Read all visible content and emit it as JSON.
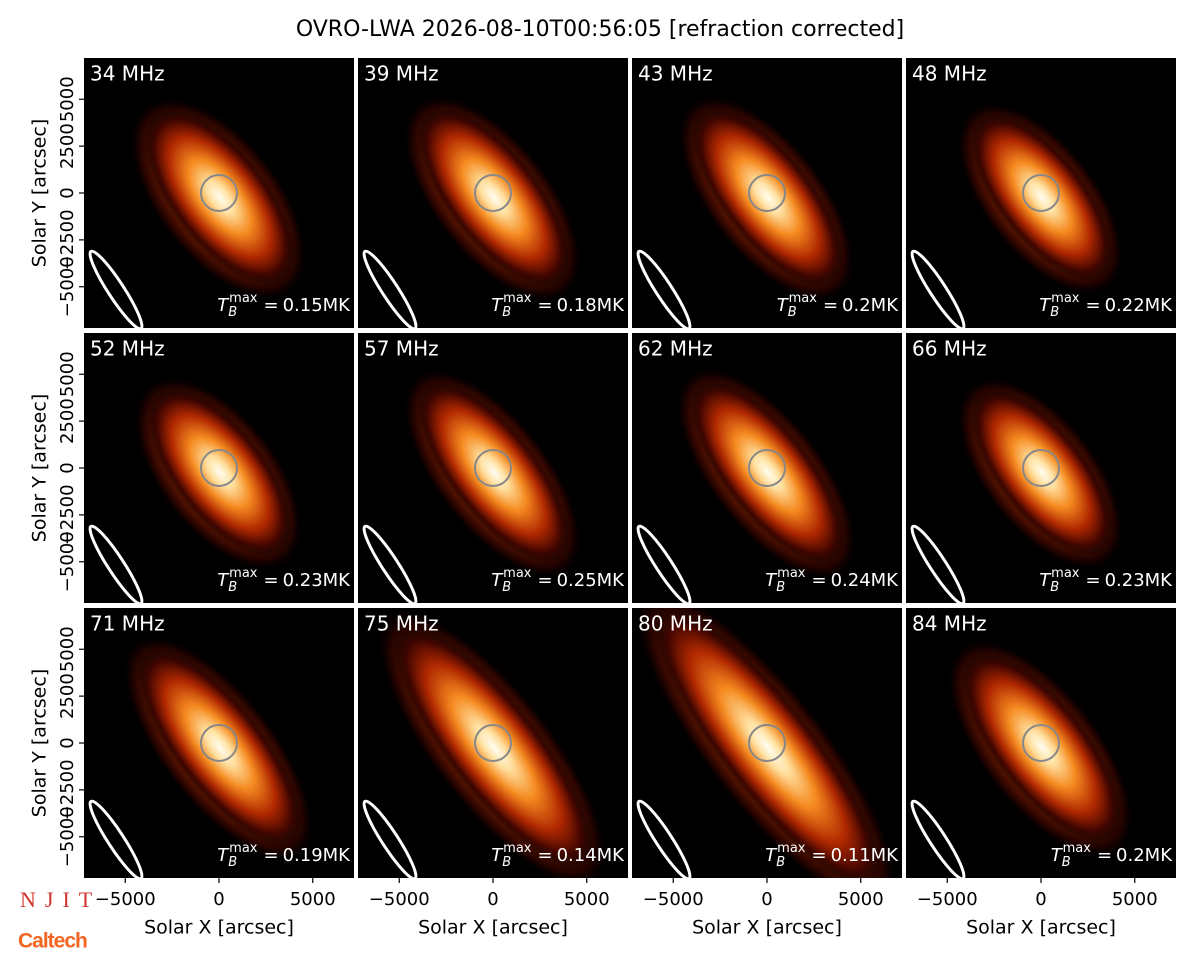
{
  "title": "OVRO-LWA 2026-08-10T00:56:05 [refraction corrected]",
  "tb_label": {
    "symbol": "T",
    "sub": "B",
    "sup": "max",
    "eq": "="
  },
  "logos": {
    "njit": "NJIT",
    "caltech": "Caltech"
  },
  "chart_data": [
    {
      "type": "image",
      "title": "34 MHz",
      "values": [
        0.15
      ],
      "value_labels": [
        "0.15MK"
      ],
      "xlim": [
        -7200,
        7200
      ],
      "ylim": [
        -7200,
        7200
      ],
      "ylabel": "Solar Y [arcsec]",
      "yticks": [
        {
          "value": -5000,
          "label": "−5000"
        },
        {
          "value": -2500,
          "label": "−2500"
        },
        0,
        2500,
        5000
      ]
    },
    {
      "type": "image",
      "title": "39 MHz",
      "values": [
        0.18
      ],
      "value_labels": [
        "0.18MK"
      ],
      "xlim": [
        -7200,
        7200
      ],
      "ylim": [
        -7200,
        7200
      ]
    },
    {
      "type": "image",
      "title": "43 MHz",
      "values": [
        0.2
      ],
      "value_labels": [
        "0.2MK"
      ],
      "xlim": [
        -7200,
        7200
      ],
      "ylim": [
        -7200,
        7200
      ]
    },
    {
      "type": "image",
      "title": "48 MHz",
      "values": [
        0.22
      ],
      "value_labels": [
        "0.22MK"
      ],
      "xlim": [
        -7200,
        7200
      ],
      "ylim": [
        -7200,
        7200
      ]
    },
    {
      "type": "image",
      "title": "52 MHz",
      "values": [
        0.23
      ],
      "value_labels": [
        "0.23MK"
      ],
      "xlim": [
        -7200,
        7200
      ],
      "ylim": [
        -7200,
        7200
      ],
      "ylabel": "Solar Y [arcsec]",
      "yticks": [
        {
          "value": -5000,
          "label": "−5000"
        },
        {
          "value": -2500,
          "label": "−2500"
        },
        0,
        2500,
        5000
      ]
    },
    {
      "type": "image",
      "title": "57 MHz",
      "values": [
        0.25
      ],
      "value_labels": [
        "0.25MK"
      ],
      "xlim": [
        -7200,
        7200
      ],
      "ylim": [
        -7200,
        7200
      ]
    },
    {
      "type": "image",
      "title": "62 MHz",
      "values": [
        0.24
      ],
      "value_labels": [
        "0.24MK"
      ],
      "xlim": [
        -7200,
        7200
      ],
      "ylim": [
        -7200,
        7200
      ]
    },
    {
      "type": "image",
      "title": "66 MHz",
      "values": [
        0.23
      ],
      "value_labels": [
        "0.23MK"
      ],
      "xlim": [
        -7200,
        7200
      ],
      "ylim": [
        -7200,
        7200
      ]
    },
    {
      "type": "image",
      "title": "71 MHz",
      "values": [
        0.19
      ],
      "value_labels": [
        "0.19MK"
      ],
      "xlim": [
        -7200,
        7200
      ],
      "ylim": [
        -7200,
        7200
      ],
      "ylabel": "Solar Y [arcsec]",
      "yticks": [
        {
          "value": -5000,
          "label": "−5000"
        },
        {
          "value": -2500,
          "label": "−2500"
        },
        0,
        2500,
        5000
      ],
      "xlabel": "Solar X [arcsec]",
      "xticks": [
        {
          "value": -5000,
          "label": "−5000"
        },
        0,
        5000
      ]
    },
    {
      "type": "image",
      "title": "75 MHz",
      "values": [
        0.14
      ],
      "value_labels": [
        "0.14MK"
      ],
      "xlim": [
        -7200,
        7200
      ],
      "ylim": [
        -7200,
        7200
      ],
      "xlabel": "Solar X [arcsec]",
      "xticks": [
        {
          "value": -5000,
          "label": "−5000"
        },
        0,
        5000
      ]
    },
    {
      "type": "image",
      "title": "80 MHz",
      "values": [
        0.11
      ],
      "value_labels": [
        "0.11MK"
      ],
      "xlim": [
        -7200,
        7200
      ],
      "ylim": [
        -7200,
        7200
      ],
      "xlabel": "Solar X [arcsec]",
      "xticks": [
        {
          "value": -5000,
          "label": "−5000"
        },
        0,
        5000
      ]
    },
    {
      "type": "image",
      "title": "84 MHz",
      "values": [
        0.2
      ],
      "value_labels": [
        "0.2MK"
      ],
      "xlim": [
        -7200,
        7200
      ],
      "ylim": [
        -7200,
        7200
      ],
      "xlabel": "Solar X [arcsec]",
      "xticks": [
        {
          "value": -5000,
          "label": "−5000"
        },
        0,
        5000
      ]
    }
  ]
}
